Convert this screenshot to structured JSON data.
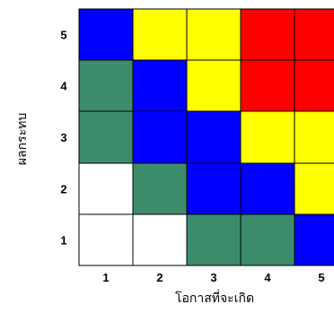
{
  "chart_data": {
    "type": "heatmap",
    "xlabel": "โอกาสที่จะเกิด",
    "ylabel": "ผลกระทบ",
    "x_categories": [
      "1",
      "2",
      "3",
      "4",
      "5"
    ],
    "y_categories": [
      "1",
      "2",
      "3",
      "4",
      "5"
    ],
    "grid": true,
    "colors": {
      "white": "#ffffff",
      "green": "#3c8c6c",
      "blue": "#0000ff",
      "yellow": "#ffff00",
      "red": "#ff0000"
    },
    "cells": [
      {
        "impact": 5,
        "likelihood": 1,
        "level": "blue"
      },
      {
        "impact": 5,
        "likelihood": 2,
        "level": "yellow"
      },
      {
        "impact": 5,
        "likelihood": 3,
        "level": "yellow"
      },
      {
        "impact": 5,
        "likelihood": 4,
        "level": "red"
      },
      {
        "impact": 5,
        "likelihood": 5,
        "level": "red"
      },
      {
        "impact": 4,
        "likelihood": 1,
        "level": "green"
      },
      {
        "impact": 4,
        "likelihood": 2,
        "level": "blue"
      },
      {
        "impact": 4,
        "likelihood": 3,
        "level": "yellow"
      },
      {
        "impact": 4,
        "likelihood": 4,
        "level": "red"
      },
      {
        "impact": 4,
        "likelihood": 5,
        "level": "red"
      },
      {
        "impact": 3,
        "likelihood": 1,
        "level": "green"
      },
      {
        "impact": 3,
        "likelihood": 2,
        "level": "blue"
      },
      {
        "impact": 3,
        "likelihood": 3,
        "level": "blue"
      },
      {
        "impact": 3,
        "likelihood": 4,
        "level": "yellow"
      },
      {
        "impact": 3,
        "likelihood": 5,
        "level": "yellow"
      },
      {
        "impact": 2,
        "likelihood": 1,
        "level": "white"
      },
      {
        "impact": 2,
        "likelihood": 2,
        "level": "green"
      },
      {
        "impact": 2,
        "likelihood": 3,
        "level": "blue"
      },
      {
        "impact": 2,
        "likelihood": 4,
        "level": "blue"
      },
      {
        "impact": 2,
        "likelihood": 5,
        "level": "yellow"
      },
      {
        "impact": 1,
        "likelihood": 1,
        "level": "white"
      },
      {
        "impact": 1,
        "likelihood": 2,
        "level": "white"
      },
      {
        "impact": 1,
        "likelihood": 3,
        "level": "green"
      },
      {
        "impact": 1,
        "likelihood": 4,
        "level": "green"
      },
      {
        "impact": 1,
        "likelihood": 5,
        "level": "blue"
      }
    ]
  }
}
